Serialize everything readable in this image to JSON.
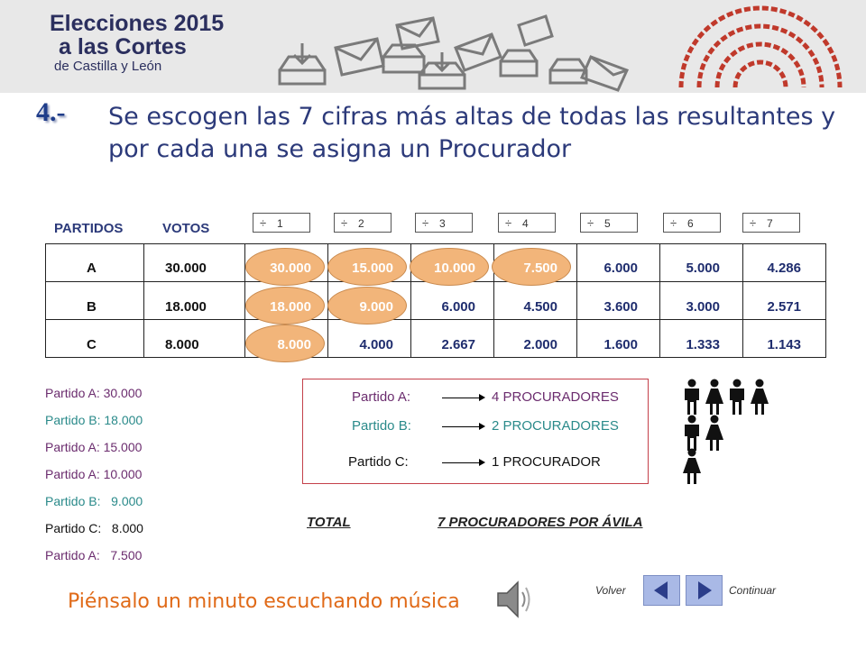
{
  "header": {
    "logo_line1": "Elecciones 2015",
    "logo_line2": "a las Cortes",
    "logo_line3": "de Castilla y León"
  },
  "step": {
    "number": "4.-",
    "text": "Se escogen las 7 cifras más altas de todas las resultantes y por cada una se asigna un Procurador"
  },
  "table": {
    "col_partidos": "PARTIDOS",
    "col_votos": "VOTOS",
    "divisor_symbol": "÷",
    "divisors": [
      "1",
      "2",
      "3",
      "4",
      "5",
      "6",
      "7"
    ],
    "rows": [
      {
        "party": "A",
        "votes": "30.000",
        "values": [
          "30.000",
          "15.000",
          "10.000",
          "7.500",
          "6.000",
          "5.000",
          "4.286"
        ],
        "selected": [
          true,
          true,
          true,
          true,
          false,
          false,
          false
        ]
      },
      {
        "party": "B",
        "votes": "18.000",
        "values": [
          "18.000",
          "9.000",
          "6.000",
          "4.500",
          "3.600",
          "3.000",
          "2.571"
        ],
        "selected": [
          true,
          true,
          false,
          false,
          false,
          false,
          false
        ]
      },
      {
        "party": "C",
        "votes": "8.000",
        "values": [
          "8.000",
          "4.000",
          "2.667",
          "2.000",
          "1.600",
          "1.333",
          "1.143"
        ],
        "selected": [
          true,
          false,
          false,
          false,
          false,
          false,
          false
        ]
      }
    ]
  },
  "ranking": [
    {
      "text": "Partido A: 30.000",
      "color": "#6b2c6e"
    },
    {
      "text": "Partido B: 18.000",
      "color": "#2a8a8a"
    },
    {
      "text": "Partido A: 15.000",
      "color": "#6b2c6e"
    },
    {
      "text": "Partido A: 10.000",
      "color": "#6b2c6e"
    },
    {
      "text": "Partido B:   9.000",
      "color": "#2a8a8a"
    },
    {
      "text": "Partido C:   8.000",
      "color": "#111111"
    },
    {
      "text": "Partido A:   7.500",
      "color": "#6b2c6e"
    }
  ],
  "results": [
    {
      "party": "Partido A:",
      "seats": "4 PROCURADORES",
      "color": "#6b2c6e",
      "figures": [
        "male",
        "female",
        "male",
        "female"
      ]
    },
    {
      "party": "Partido B:",
      "seats": "2 PROCURADORES",
      "color": "#2a8a8a",
      "figures": [
        "male",
        "female"
      ]
    },
    {
      "party": "Partido C:",
      "seats": "1 PROCURADOR",
      "color": "#111111",
      "figures": [
        "female"
      ]
    }
  ],
  "total": {
    "label": "TOTAL",
    "value": "7 PROCURADORES POR ÁVILA"
  },
  "footer": {
    "music_text": "Piénsalo un minuto escuchando música",
    "speaker_icon": "speaker-icon",
    "back_label": "Volver",
    "continue_label": "Continuar"
  },
  "colors": {
    "oval_fill": "#f2b57a",
    "title_blue": "#2c3a7a",
    "accent_orange": "#e06a18",
    "nav_button": "#a9b9e6"
  }
}
